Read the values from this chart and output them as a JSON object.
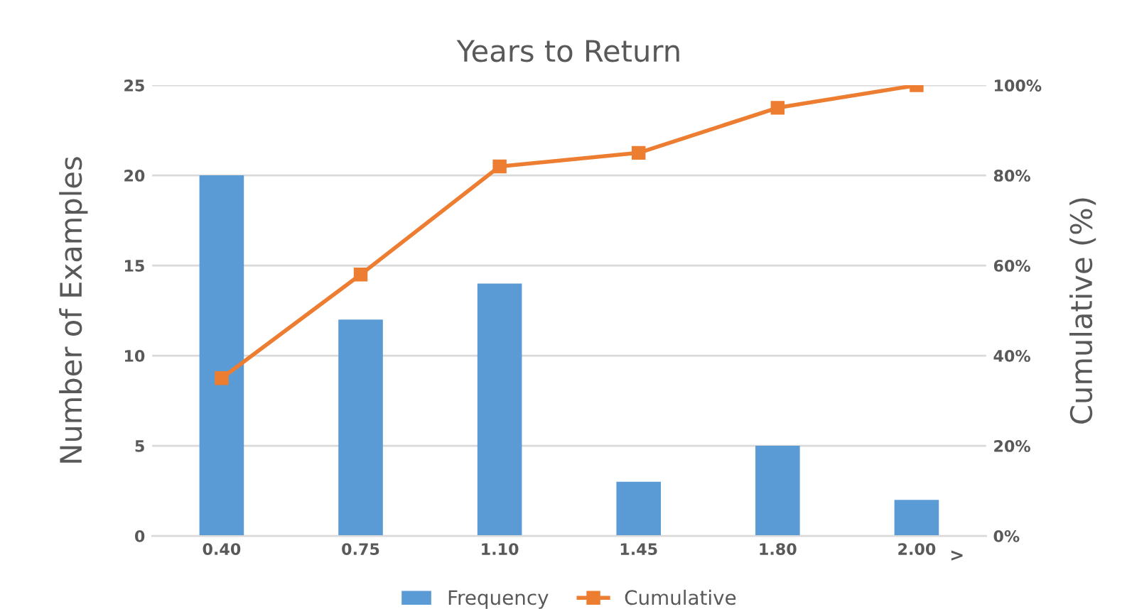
{
  "chart_data": {
    "type": "bar",
    "title": "Years to Return",
    "ylabel": "Number of Examples",
    "y2label": "Cumulative (%)",
    "categories": [
      "0.40",
      "0.75",
      "1.10",
      "1.45",
      "1.80",
      "2.00"
    ],
    "series": [
      {
        "name": "Frequency",
        "color": "#5b9bd5",
        "values": [
          20,
          12,
          14,
          3,
          5,
          2
        ]
      },
      {
        "name": "Cumulative",
        "type": "line",
        "axis": "y2",
        "color": "#ed7d31",
        "marker": "square",
        "values": [
          35,
          58,
          82,
          85,
          95,
          100
        ]
      }
    ],
    "ylim": [
      0,
      25
    ],
    "yticks": [
      0,
      5,
      10,
      15,
      20,
      25
    ],
    "y2lim": [
      0,
      100
    ],
    "y2ticks": [
      {
        "value": 0,
        "label": "0%"
      },
      {
        "value": 20,
        "label": "20%"
      },
      {
        "value": 40,
        "label": "40%"
      },
      {
        "value": 60,
        "label": "60%"
      },
      {
        "value": 80,
        "label": "80%"
      },
      {
        "value": 100,
        "label": "100%"
      }
    ],
    "annotations": [
      ">"
    ],
    "grid": "y",
    "legend": "bottom"
  }
}
